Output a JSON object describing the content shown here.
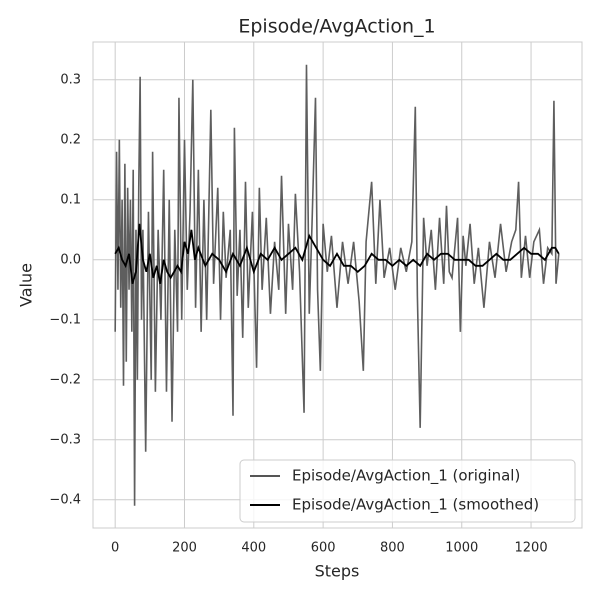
{
  "chart_data": {
    "type": "line",
    "title": "Episode/AvgAction_1",
    "xlabel": "Steps",
    "ylabel": "Value",
    "xlim": [
      -64,
      1347
    ],
    "ylim": [
      -0.447,
      0.363
    ],
    "xticks": [
      0,
      200,
      400,
      600,
      800,
      1000,
      1200
    ],
    "yticks": [
      {
        "value": -0.4,
        "label": "−0.4"
      },
      {
        "value": -0.3,
        "label": "−0.3"
      },
      {
        "value": -0.2,
        "label": "−0.2"
      },
      {
        "value": -0.1,
        "label": "−0.1"
      },
      {
        "value": 0,
        "label": "0.0"
      },
      0.1,
      0.2,
      0.3
    ],
    "grid": true,
    "legend": "lower right",
    "series": [
      {
        "name": "Episode/AvgAction_1 (original)",
        "color": "#555555",
        "x": [
          0,
          4,
          8,
          12,
          16,
          20,
          24,
          28,
          32,
          36,
          40,
          44,
          48,
          52,
          56,
          60,
          64,
          68,
          72,
          76,
          80,
          88,
          96,
          104,
          108,
          116,
          124,
          132,
          140,
          148,
          156,
          164,
          172,
          180,
          184,
          192,
          200,
          208,
          216,
          224,
          232,
          240,
          248,
          256,
          264,
          276,
          284,
          296,
          304,
          312,
          320,
          332,
          340,
          344,
          352,
          360,
          368,
          376,
          384,
          396,
          408,
          416,
          424,
          436,
          448,
          460,
          472,
          480,
          492,
          500,
          512,
          520,
          532,
          545,
          552,
          560,
          568,
          578,
          584,
          592,
          600,
          612,
          624,
          640,
          656,
          672,
          688,
          704,
          716,
          724,
          740,
          752,
          764,
          776,
          792,
          808,
          824,
          840,
          856,
          866,
          872,
          880,
          890,
          900,
          912,
          924,
          936,
          948,
          956,
          964,
          972,
          988,
          996,
          1004,
          1012,
          1024,
          1036,
          1048,
          1064,
          1080,
          1096,
          1112,
          1128,
          1144,
          1156,
          1164,
          1172,
          1184,
          1196,
          1208,
          1224,
          1236,
          1248,
          1260,
          1266,
          1272,
          1280
        ],
        "values": [
          -0.12,
          0.18,
          -0.05,
          0.2,
          -0.08,
          0.1,
          -0.21,
          0.16,
          -0.17,
          0.12,
          -0.05,
          0.1,
          -0.12,
          0.15,
          -0.41,
          0.05,
          -0.2,
          0.12,
          0.305,
          -0.1,
          0.05,
          -0.32,
          0.08,
          -0.2,
          0.18,
          -0.22,
          0.05,
          -0.1,
          0.15,
          -0.22,
          0.1,
          -0.27,
          0.05,
          -0.12,
          0.27,
          -0.1,
          0.2,
          -0.05,
          0.08,
          0.3,
          -0.08,
          0.15,
          -0.12,
          0.1,
          -0.1,
          0.25,
          -0.04,
          0.12,
          -0.1,
          0.08,
          -0.03,
          0.05,
          -0.26,
          0.22,
          -0.06,
          0.05,
          -0.13,
          0.13,
          -0.08,
          0.08,
          -0.18,
          0.12,
          -0.05,
          0.07,
          -0.09,
          0.03,
          -0.05,
          0.14,
          -0.09,
          0.06,
          -0.05,
          0.11,
          -0.02,
          -0.255,
          0.325,
          -0.09,
          0.06,
          0.27,
          -0.05,
          -0.185,
          0.06,
          -0.02,
          0.04,
          -0.08,
          0.03,
          -0.04,
          0.03,
          -0.07,
          -0.185,
          0.03,
          0.13,
          -0.04,
          0.1,
          -0.03,
          0.02,
          -0.05,
          0.02,
          -0.02,
          0.03,
          0.255,
          -0.06,
          -0.28,
          0.07,
          -0.01,
          0.05,
          -0.05,
          0.07,
          -0.04,
          0.09,
          -0.02,
          -0.03,
          0.07,
          -0.12,
          0.04,
          -0.01,
          0.06,
          -0.04,
          0.02,
          -0.08,
          0.03,
          -0.03,
          0.06,
          -0.02,
          0.03,
          0.05,
          0.13,
          -0.03,
          0.04,
          -0.03,
          0.03,
          0.05,
          -0.04,
          0.02,
          0.01,
          0.265,
          -0.04,
          0.01
        ]
      },
      {
        "name": "Episode/AvgAction_1 (smoothed)",
        "color": "#000000",
        "x": [
          0,
          10,
          20,
          30,
          40,
          50,
          60,
          70,
          80,
          90,
          100,
          110,
          120,
          130,
          140,
          150,
          160,
          170,
          180,
          190,
          200,
          210,
          220,
          230,
          240,
          260,
          280,
          300,
          320,
          340,
          360,
          380,
          400,
          420,
          440,
          460,
          480,
          500,
          520,
          540,
          560,
          580,
          600,
          620,
          640,
          660,
          680,
          700,
          720,
          740,
          760,
          780,
          800,
          820,
          840,
          860,
          880,
          900,
          920,
          940,
          960,
          980,
          1000,
          1020,
          1040,
          1060,
          1080,
          1100,
          1120,
          1140,
          1160,
          1180,
          1200,
          1220,
          1240,
          1260,
          1270,
          1280
        ],
        "values": [
          0.01,
          0.02,
          0.0,
          -0.01,
          0.01,
          -0.04,
          -0.02,
          0.06,
          0.0,
          -0.02,
          0.01,
          -0.03,
          -0.01,
          -0.04,
          0.0,
          -0.02,
          -0.03,
          -0.02,
          -0.01,
          -0.02,
          0.03,
          0.01,
          0.05,
          0.0,
          0.02,
          -0.01,
          0.01,
          0.0,
          -0.02,
          0.01,
          -0.01,
          0.02,
          -0.02,
          0.01,
          0.0,
          0.02,
          0.0,
          0.01,
          0.02,
          0.0,
          0.04,
          0.02,
          0.0,
          -0.01,
          0.01,
          -0.01,
          -0.01,
          -0.02,
          -0.01,
          0.01,
          0.0,
          0.0,
          -0.01,
          0.0,
          -0.01,
          0.0,
          -0.01,
          0.01,
          0.0,
          0.01,
          0.01,
          0.0,
          0.0,
          0.0,
          -0.01,
          -0.01,
          0.0,
          0.01,
          0.0,
          0.0,
          0.01,
          0.02,
          0.01,
          0.01,
          0.0,
          0.02,
          0.02,
          0.01
        ]
      }
    ]
  }
}
